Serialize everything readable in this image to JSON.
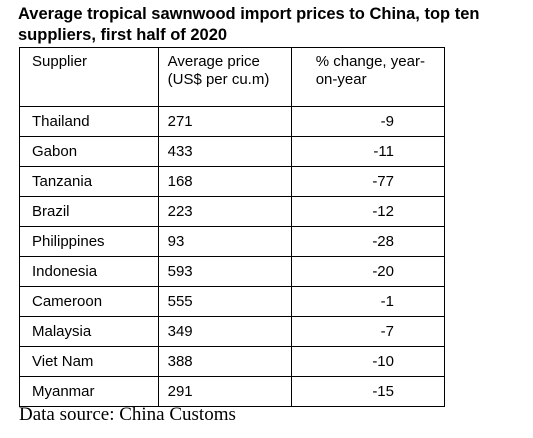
{
  "title": "Average tropical sawnwood import prices to China, top ten suppliers, first half of 2020",
  "table": {
    "headers": {
      "supplier": "Supplier",
      "price": "Average price (US$ per cu.m)",
      "change": "% change, year-on-year"
    },
    "rows": [
      {
        "supplier": "Thailand",
        "price": "271",
        "change": "-9"
      },
      {
        "supplier": "Gabon",
        "price": "433",
        "change": "-11"
      },
      {
        "supplier": "Tanzania",
        "price": "168",
        "change": "-77"
      },
      {
        "supplier": "Brazil",
        "price": "223",
        "change": "-12"
      },
      {
        "supplier": "Philippines",
        "price": "93",
        "change": "-28"
      },
      {
        "supplier": "Indonesia",
        "price": "593",
        "change": "-20"
      },
      {
        "supplier": "Cameroon",
        "price": "555",
        "change": "-1"
      },
      {
        "supplier": "Malaysia",
        "price": "349",
        "change": "-7"
      },
      {
        "supplier": "Viet Nam",
        "price": "388",
        "change": "-10"
      },
      {
        "supplier": "Myanmar",
        "price": "291",
        "change": "-15"
      }
    ]
  },
  "source": "Data source: China Customs"
}
